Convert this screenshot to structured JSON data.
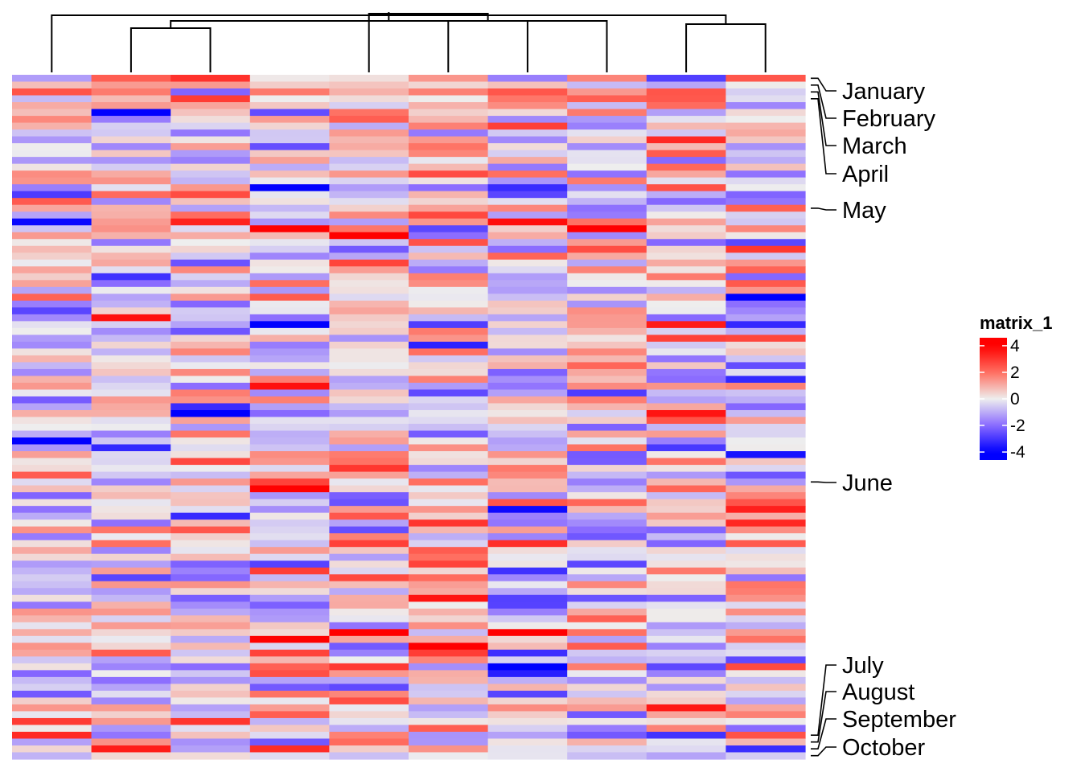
{
  "chart_data": {
    "type": "heatmap",
    "title": "",
    "n_rows": 100,
    "n_cols": 10,
    "color_scale": {
      "stops": [
        {
          "value": -4,
          "color": "#0000ff"
        },
        {
          "value": -2,
          "color": "#8a6bff"
        },
        {
          "value": 0,
          "color": "#eeeeee"
        },
        {
          "value": 2,
          "color": "#ff6e60"
        },
        {
          "value": 4,
          "color": "#ff0000"
        }
      ]
    },
    "legend": {
      "title": "matrix_1",
      "ticks": [
        "4",
        "2",
        "0",
        "-2",
        "-4"
      ],
      "tick_values": [
        4,
        2,
        0,
        -2,
        -4
      ],
      "placement": "right"
    },
    "column_order": [
      1,
      2,
      3,
      4,
      5,
      6,
      7,
      8,
      9,
      10
    ],
    "column_dendrogram": {
      "merges": [
        [
          2,
          3
        ],
        [
          9,
          10
        ],
        [
          6,
          7
        ],
        [
          8,
          11
        ],
        [
          1,
          12
        ],
        [
          5,
          13
        ],
        [
          14,
          15
        ]
      ]
    },
    "row_annotations": [
      {
        "label": "January",
        "row": 1
      },
      {
        "label": "February",
        "row": 2
      },
      {
        "label": "March",
        "row": 3
      },
      {
        "label": "April",
        "row": 4
      },
      {
        "label": "May",
        "row": 20
      },
      {
        "label": "June",
        "row": 60
      },
      {
        "label": "July",
        "row": 97
      },
      {
        "label": "August",
        "row": 98
      },
      {
        "label": "September",
        "row": 99
      },
      {
        "label": "October",
        "row": 100
      }
    ],
    "row_values_note": "cell values are approximate readings",
    "values": []
  }
}
